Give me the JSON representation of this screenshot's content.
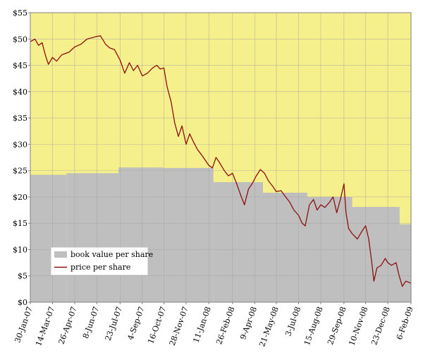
{
  "chart_data": {
    "type": "area",
    "x_type": "date",
    "ylim": [
      0,
      55
    ],
    "y_ticks": [
      0,
      5,
      10,
      15,
      20,
      25,
      30,
      35,
      40,
      45,
      50,
      55
    ],
    "y_tick_labels": [
      "$0",
      "$5",
      "$10",
      "$15",
      "$20",
      "$25",
      "$30",
      "$35",
      "$40",
      "$45",
      "$50",
      "$55"
    ],
    "x_range": [
      "2007-01-30",
      "2009-02-06"
    ],
    "x_ticks": [
      "2007-01-30",
      "2007-03-14",
      "2007-04-26",
      "2007-06-08",
      "2007-07-23",
      "2007-09-04",
      "2007-10-16",
      "2007-11-28",
      "2008-01-11",
      "2008-02-26",
      "2008-04-09",
      "2008-05-21",
      "2008-07-03",
      "2008-08-15",
      "2008-09-29",
      "2008-11-10",
      "2008-12-23",
      "2009-02-06"
    ],
    "x_tick_labels": [
      "30-Jan-07",
      "14-Mar-07",
      "26-Apr-07",
      "8-Jun-07",
      "23-Jul-07",
      "4-Sep-07",
      "16-Oct-07",
      "28-Nov-07",
      "11-Jan-08",
      "26-Feb-08",
      "9-Apr-08",
      "21-May-08",
      "3-Jul-08",
      "15-Aug-08",
      "29-Sep-08",
      "10-Nov-08",
      "23-Dec-08",
      "6-Feb-09"
    ],
    "grid": true,
    "legend_position": "bottom-left",
    "background_color": "#f5f08c",
    "series": [
      {
        "name": "book value per share",
        "kind": "step-area",
        "color": "#bfbfbf",
        "steps": [
          {
            "date": "2007-01-30",
            "value": 24.2
          },
          {
            "date": "2007-04-10",
            "value": 24.5
          },
          {
            "date": "2007-07-20",
            "value": 25.6
          },
          {
            "date": "2007-10-15",
            "value": 25.5
          },
          {
            "date": "2008-01-20",
            "value": 22.8
          },
          {
            "date": "2008-04-25",
            "value": 20.8
          },
          {
            "date": "2008-07-20",
            "value": 20.0
          },
          {
            "date": "2008-10-15",
            "value": 18.1
          },
          {
            "date": "2009-01-15",
            "value": 14.8
          }
        ],
        "end_date": "2009-02-06"
      },
      {
        "name": "price per share",
        "kind": "line",
        "color": "#8b1010",
        "points": [
          [
            "2007-01-30",
            49.5
          ],
          [
            "2007-02-08",
            50.0
          ],
          [
            "2007-02-15",
            48.8
          ],
          [
            "2007-02-22",
            49.3
          ],
          [
            "2007-02-28",
            47.0
          ],
          [
            "2007-03-06",
            45.2
          ],
          [
            "2007-03-14",
            46.5
          ],
          [
            "2007-03-22",
            45.8
          ],
          [
            "2007-04-01",
            47.0
          ],
          [
            "2007-04-15",
            47.5
          ],
          [
            "2007-04-26",
            48.5
          ],
          [
            "2007-05-08",
            49.0
          ],
          [
            "2007-05-20",
            50.0
          ],
          [
            "2007-06-01",
            50.3
          ],
          [
            "2007-06-08",
            50.5
          ],
          [
            "2007-06-15",
            50.6
          ],
          [
            "2007-06-25",
            49.0
          ],
          [
            "2007-07-03",
            48.3
          ],
          [
            "2007-07-12",
            48.0
          ],
          [
            "2007-07-23",
            46.0
          ],
          [
            "2007-08-01",
            43.5
          ],
          [
            "2007-08-10",
            45.5
          ],
          [
            "2007-08-18",
            44.0
          ],
          [
            "2007-08-26",
            45.0
          ],
          [
            "2007-09-04",
            43.0
          ],
          [
            "2007-09-14",
            43.5
          ],
          [
            "2007-09-24",
            44.5
          ],
          [
            "2007-10-02",
            45.0
          ],
          [
            "2007-10-09",
            44.3
          ],
          [
            "2007-10-16",
            44.5
          ],
          [
            "2007-10-22",
            41.0
          ],
          [
            "2007-10-30",
            38.0
          ],
          [
            "2007-11-06",
            34.0
          ],
          [
            "2007-11-13",
            31.5
          ],
          [
            "2007-11-20",
            33.5
          ],
          [
            "2007-11-28",
            30.0
          ],
          [
            "2007-12-05",
            32.0
          ],
          [
            "2007-12-12",
            30.5
          ],
          [
            "2007-12-20",
            29.0
          ],
          [
            "2007-12-28",
            28.0
          ],
          [
            "2008-01-04",
            27.0
          ],
          [
            "2008-01-11",
            26.0
          ],
          [
            "2008-01-18",
            25.5
          ],
          [
            "2008-01-25",
            27.5
          ],
          [
            "2008-02-01",
            26.5
          ],
          [
            "2008-02-10",
            25.0
          ],
          [
            "2008-02-18",
            24.0
          ],
          [
            "2008-02-26",
            24.5
          ],
          [
            "2008-03-05",
            22.5
          ],
          [
            "2008-03-14",
            20.0
          ],
          [
            "2008-03-20",
            18.5
          ],
          [
            "2008-03-28",
            21.5
          ],
          [
            "2008-04-04",
            22.5
          ],
          [
            "2008-04-12",
            24.0
          ],
          [
            "2008-04-20",
            25.2
          ],
          [
            "2008-04-28",
            24.5
          ],
          [
            "2008-05-06",
            23.0
          ],
          [
            "2008-05-14",
            22.0
          ],
          [
            "2008-05-21",
            21.0
          ],
          [
            "2008-05-30",
            21.2
          ],
          [
            "2008-06-08",
            20.0
          ],
          [
            "2008-06-16",
            19.0
          ],
          [
            "2008-06-24",
            17.5
          ],
          [
            "2008-07-03",
            16.5
          ],
          [
            "2008-07-10",
            15.0
          ],
          [
            "2008-07-16",
            14.5
          ],
          [
            "2008-07-24",
            18.5
          ],
          [
            "2008-08-01",
            19.5
          ],
          [
            "2008-08-08",
            17.5
          ],
          [
            "2008-08-15",
            18.5
          ],
          [
            "2008-08-23",
            18.0
          ],
          [
            "2008-09-01",
            19.0
          ],
          [
            "2008-09-08",
            20.0
          ],
          [
            "2008-09-15",
            17.0
          ],
          [
            "2008-09-22",
            19.5
          ],
          [
            "2008-09-29",
            22.5
          ],
          [
            "2008-10-03",
            17.0
          ],
          [
            "2008-10-08",
            14.0
          ],
          [
            "2008-10-15",
            13.0
          ],
          [
            "2008-10-25",
            12.0
          ],
          [
            "2008-11-03",
            13.5
          ],
          [
            "2008-11-10",
            14.5
          ],
          [
            "2008-11-16",
            12.0
          ],
          [
            "2008-11-22",
            7.5
          ],
          [
            "2008-11-26",
            4.0
          ],
          [
            "2008-12-02",
            6.5
          ],
          [
            "2008-12-10",
            7.0
          ],
          [
            "2008-12-18",
            8.3
          ],
          [
            "2008-12-23",
            7.5
          ],
          [
            "2008-12-30",
            7.0
          ],
          [
            "2009-01-08",
            7.5
          ],
          [
            "2009-01-14",
            5.0
          ],
          [
            "2009-01-20",
            3.0
          ],
          [
            "2009-01-27",
            4.0
          ],
          [
            "2009-02-06",
            3.6
          ]
        ]
      }
    ]
  }
}
